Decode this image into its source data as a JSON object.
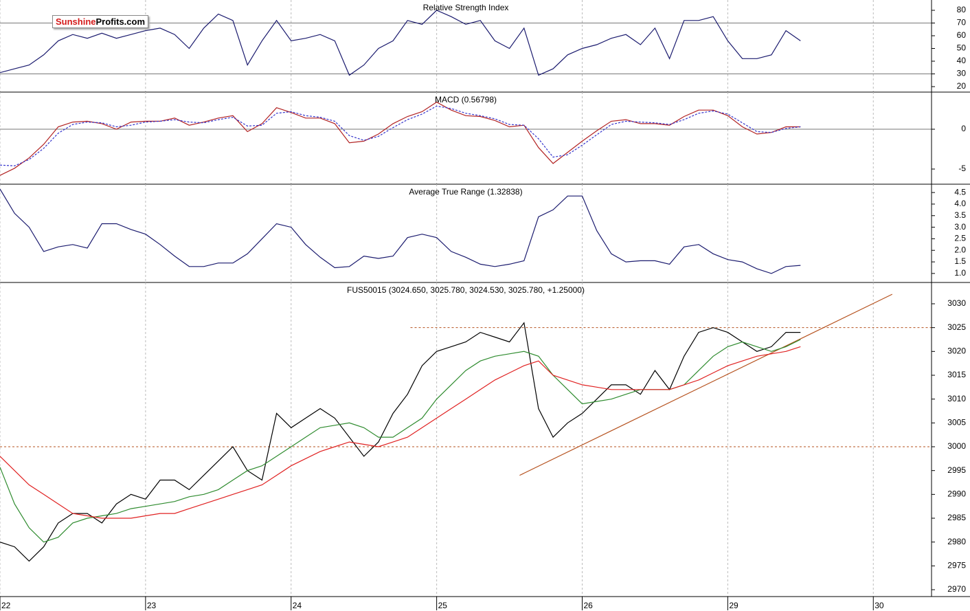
{
  "logo": {
    "brand": "Sunshine",
    "domain": "Profits.com"
  },
  "chart_data": [
    {
      "type": "line",
      "title": "Relative Strength Index",
      "xlim": [
        0,
        6.4
      ],
      "ylim": [
        15.7,
        88.1
      ],
      "yticks": [
        20,
        30,
        40,
        50,
        60,
        70,
        80
      ],
      "levels": [
        30,
        70
      ],
      "level_style": "solid",
      "x": [
        0,
        0.1,
        0.2,
        0.3,
        0.4,
        0.5,
        0.6,
        0.7,
        0.8,
        0.9,
        1,
        1.1,
        1.2,
        1.3,
        1.4,
        1.5,
        1.6,
        1.7,
        1.8,
        1.9,
        2,
        2.1,
        2.2,
        2.3,
        2.4,
        2.5,
        2.6,
        2.7,
        2.8,
        2.9,
        3,
        3.1,
        3.2,
        3.3,
        3.4,
        3.5,
        3.6,
        3.7,
        3.8,
        3.9,
        4,
        4.1,
        4.2,
        4.3,
        4.4,
        4.5,
        4.6,
        4.7,
        4.8,
        4.9,
        5,
        5.1,
        5.2,
        5.3,
        5.4,
        5.5
      ],
      "series": [
        {
          "color": "#1a1a6e",
          "values": [
            31,
            34,
            37,
            45,
            56,
            61,
            58,
            62,
            58,
            61,
            64,
            66,
            61,
            50,
            66,
            77,
            72,
            37,
            56,
            72,
            56,
            58,
            61,
            56,
            29,
            37,
            50,
            56,
            72,
            69,
            80,
            75,
            69,
            72,
            56,
            50,
            66,
            29,
            34,
            45,
            50,
            53,
            58,
            61,
            53,
            66,
            42,
            72,
            72,
            75,
            56,
            42,
            42,
            45,
            64,
            56
          ]
        }
      ]
    },
    {
      "type": "line",
      "title": "MACD (0.56798)",
      "xlim": [
        0,
        6.4
      ],
      "ylim": [
        -6.9,
        4.66
      ],
      "yticks": [
        -5,
        0
      ],
      "levels": [
        0
      ],
      "level_style": "solid",
      "x": [
        0,
        0.1,
        0.2,
        0.3,
        0.4,
        0.5,
        0.6,
        0.7,
        0.8,
        0.9,
        1,
        1.1,
        1.2,
        1.3,
        1.4,
        1.5,
        1.6,
        1.7,
        1.8,
        1.9,
        2,
        2.1,
        2.2,
        2.3,
        2.4,
        2.5,
        2.6,
        2.7,
        2.8,
        2.9,
        3,
        3.1,
        3.2,
        3.3,
        3.4,
        3.5,
        3.6,
        3.7,
        3.8,
        3.9,
        4,
        4.1,
        4.2,
        4.3,
        4.4,
        4.5,
        4.6,
        4.7,
        4.8,
        4.9,
        5,
        5.1,
        5.2,
        5.3,
        5.4,
        5.5
      ],
      "series": [
        {
          "color": "#b22222",
          "dash": false,
          "values": [
            -5.8,
            -4.9,
            -3.6,
            -1.9,
            0.3,
            0.9,
            1.0,
            0.7,
            0,
            0.9,
            1.0,
            1.0,
            1.4,
            0.5,
            0.9,
            1.4,
            1.7,
            -0.3,
            0.7,
            2.7,
            2.1,
            1.4,
            1.4,
            0.7,
            -1.7,
            -1.5,
            -0.6,
            0.7,
            1.6,
            2.2,
            3.4,
            2.4,
            1.7,
            1.6,
            1.1,
            0.3,
            0.5,
            -2.3,
            -4.3,
            -2.9,
            -1.5,
            -0.2,
            1.0,
            1.2,
            0.7,
            0.7,
            0.5,
            1.6,
            2.4,
            2.4,
            1.7,
            0.3,
            -0.6,
            -0.4,
            0.3,
            0.3
          ]
        },
        {
          "color": "#3333cc",
          "dash": true,
          "values": [
            -4.5,
            -4.6,
            -3.8,
            -2.4,
            -0.5,
            0.6,
            0.9,
            0.8,
            0.3,
            0.5,
            0.9,
            1.0,
            1.2,
            0.9,
            0.8,
            1.2,
            1.5,
            0.4,
            0.5,
            2.0,
            2.2,
            1.7,
            1.5,
            1.0,
            -0.8,
            -1.4,
            -0.9,
            0.2,
            1.2,
            1.9,
            2.9,
            2.6,
            2.0,
            1.7,
            1.3,
            0.6,
            0.5,
            -1.2,
            -3.5,
            -3.2,
            -2.0,
            -0.7,
            0.6,
            1.0,
            0.9,
            0.8,
            0.6,
            1.2,
            2.0,
            2.3,
            1.9,
            0.8,
            -0.3,
            -0.4,
            0.1,
            0.3
          ]
        }
      ]
    },
    {
      "type": "line",
      "title": "Average True Range (1.32838)",
      "xlim": [
        0,
        6.4
      ],
      "ylim": [
        0.61,
        4.86
      ],
      "yticks": [
        {
          "value": 1,
          "label": "1.0"
        },
        1.5,
        {
          "value": 2,
          "label": "2.0"
        },
        2.5,
        {
          "value": 3,
          "label": "3.0"
        },
        3.5,
        {
          "value": 4,
          "label": "4.0"
        },
        4.5
      ],
      "x": [
        0,
        0.1,
        0.2,
        0.3,
        0.4,
        0.5,
        0.6,
        0.7,
        0.8,
        0.9,
        1,
        1.1,
        1.2,
        1.3,
        1.4,
        1.5,
        1.6,
        1.7,
        1.8,
        1.9,
        2,
        2.1,
        2.2,
        2.3,
        2.4,
        2.5,
        2.6,
        2.7,
        2.8,
        2.9,
        3,
        3.1,
        3.2,
        3.3,
        3.4,
        3.5,
        3.6,
        3.7,
        3.8,
        3.9,
        4,
        4.1,
        4.2,
        4.3,
        4.4,
        4.5,
        4.6,
        4.7,
        4.8,
        4.9,
        5,
        5.1,
        5.2,
        5.3,
        5.4,
        5.5
      ],
      "series": [
        {
          "color": "#1a1a6e",
          "values": [
            4.65,
            3.6,
            3.0,
            1.95,
            2.15,
            2.25,
            2.1,
            3.15,
            3.15,
            2.9,
            2.7,
            2.25,
            1.75,
            1.3,
            1.3,
            1.45,
            1.45,
            1.85,
            2.5,
            3.15,
            3.0,
            2.25,
            1.7,
            1.25,
            1.3,
            1.75,
            1.65,
            1.75,
            2.55,
            2.7,
            2.55,
            1.95,
            1.7,
            1.4,
            1.3,
            1.4,
            1.55,
            3.45,
            3.75,
            4.35,
            4.35,
            2.85,
            1.85,
            1.5,
            1.55,
            1.55,
            1.4,
            2.15,
            2.25,
            1.85,
            1.6,
            1.5,
            1.2,
            1.0,
            1.3,
            1.35
          ]
        }
      ]
    },
    {
      "type": "line",
      "title": "FUS50015 (3024.650, 3025.780, 3024.530, 3025.780, +1.25000)",
      "xlim": [
        0,
        6.4
      ],
      "ylim": [
        2968.56,
        3034.47
      ],
      "yticks": [
        2970,
        2975,
        2980,
        2985,
        2990,
        2995,
        3000,
        3005,
        3010,
        3015,
        3020,
        3025,
        3030
      ],
      "xticks": [
        {
          "value": 0,
          "label": "22"
        },
        {
          "value": 1,
          "label": "23"
        },
        {
          "value": 2,
          "label": "24"
        },
        {
          "value": 3,
          "label": "25"
        },
        {
          "value": 4,
          "label": "26"
        },
        {
          "value": 5,
          "label": "29"
        },
        {
          "value": 6,
          "label": "30"
        }
      ],
      "grid": true,
      "levels": [
        {
          "value": 3000,
          "from": 0
        },
        {
          "value": 3025,
          "from": 2.82
        }
      ],
      "level_style": "dashed",
      "level_color": "#b5501c",
      "trend_line": {
        "x": [
          3.57,
          6.13
        ],
        "y": [
          2994,
          3032
        ],
        "color": "#b5501c"
      },
      "x": [
        0,
        0.1,
        0.2,
        0.3,
        0.4,
        0.5,
        0.6,
        0.7,
        0.8,
        0.9,
        1,
        1.1,
        1.2,
        1.3,
        1.4,
        1.5,
        1.6,
        1.7,
        1.8,
        1.9,
        2,
        2.1,
        2.2,
        2.3,
        2.4,
        2.5,
        2.6,
        2.7,
        2.8,
        2.9,
        3,
        3.1,
        3.2,
        3.3,
        3.4,
        3.5,
        3.6,
        3.7,
        3.8,
        3.9,
        4,
        4.1,
        4.2,
        4.3,
        4.4,
        4.5,
        4.6,
        4.7,
        4.8,
        4.9,
        5,
        5.1,
        5.2,
        5.3,
        5.4,
        5.5
      ],
      "series": [
        {
          "color": "#000000",
          "values": [
            2980,
            2979,
            2976,
            2979,
            2984,
            2986,
            2986,
            2984,
            2988,
            2990,
            2989,
            2993,
            2993,
            2991,
            2994,
            2997,
            3000,
            2995,
            2993,
            3007,
            3004,
            3006,
            3008,
            3006,
            3002,
            2998,
            3001,
            3007,
            3011,
            3017,
            3020,
            3021,
            3022,
            3024,
            3023,
            3022,
            3026,
            3008,
            3002,
            3005,
            3007,
            3010,
            3013,
            3013,
            3011,
            3016,
            3012,
            3019,
            3024,
            3025,
            3024,
            3022,
            3020,
            3021,
            3024,
            3024
          ]
        },
        {
          "color": "#2e8b2e",
          "values": [
            2995.7,
            2988,
            2983,
            2980,
            2981,
            2984,
            2985,
            2985.5,
            2986,
            2987,
            2987.5,
            2988,
            2988.5,
            2989.5,
            2990,
            2991,
            2993,
            2995,
            2996,
            2998,
            3000,
            3002,
            3004,
            3004.5,
            3005,
            3004,
            3002,
            3002,
            3004,
            3006,
            3010,
            3013,
            3016,
            3018,
            3019,
            3019.5,
            3020,
            3019,
            3015,
            3012,
            3009,
            3009.5,
            3010,
            3011,
            3012,
            3012,
            3012,
            3013,
            3016,
            3019,
            3021,
            3022,
            3021,
            3020,
            3021,
            3022.5
          ]
        },
        {
          "color": "#e02020",
          "values": [
            2998,
            2995,
            2992,
            2990,
            2988,
            2986,
            2985.5,
            2985,
            2985,
            2985,
            2985.5,
            2986,
            2986,
            2987,
            2988,
            2989,
            2990,
            2991,
            2992,
            2994,
            2996,
            2997.5,
            2999,
            3000,
            3001,
            3000.5,
            3000,
            3001,
            3002,
            3004,
            3006,
            3008,
            3010,
            3012,
            3014,
            3015.5,
            3017,
            3018,
            3015,
            3014,
            3013,
            3012.5,
            3012,
            3012,
            3012,
            3012,
            3012,
            3013,
            3014,
            3015.5,
            3017,
            3018,
            3019,
            3019.5,
            3020,
            3021
          ]
        }
      ]
    }
  ]
}
